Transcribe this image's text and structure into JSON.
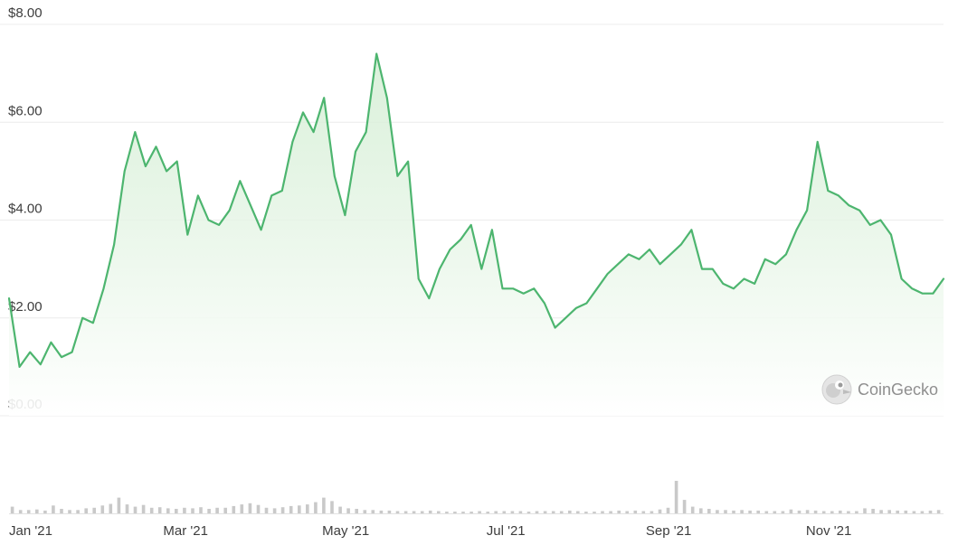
{
  "watermark": {
    "text": "CoinGecko"
  },
  "colors": {
    "line": "#4db56f",
    "fill_top": "#cfeccf",
    "fill_bottom": "#ffffff",
    "grid": "#ececec",
    "volume_bar": "#c9c9c9",
    "axis_text": "#3d3d3d"
  },
  "chart_data": [
    {
      "type": "area",
      "title": "",
      "xlabel": "",
      "ylabel": "",
      "grid": true,
      "legend": "none",
      "ylim": [
        0,
        8
      ],
      "y_ticks": [
        0,
        2,
        4,
        6,
        8
      ],
      "y_tick_labels": [
        "$0.00",
        "$2.00",
        "$4.00",
        "$6.00",
        "$8.00"
      ],
      "xlim": [
        "2021-01-01",
        "2021-12-23"
      ],
      "x_ticks": [
        "2021-01-01",
        "2021-03-01",
        "2021-05-01",
        "2021-07-01",
        "2021-09-01",
        "2021-11-01"
      ],
      "x_tick_labels": [
        "Jan '21",
        "Mar '21",
        "May '21",
        "Jul '21",
        "Sep '21",
        "Nov '21"
      ],
      "x": [
        "2021-01-01",
        "2021-01-05",
        "2021-01-09",
        "2021-01-13",
        "2021-01-17",
        "2021-01-21",
        "2021-01-25",
        "2021-01-29",
        "2021-02-02",
        "2021-02-06",
        "2021-02-10",
        "2021-02-14",
        "2021-02-18",
        "2021-02-22",
        "2021-02-26",
        "2021-03-02",
        "2021-03-06",
        "2021-03-10",
        "2021-03-14",
        "2021-03-18",
        "2021-03-22",
        "2021-03-26",
        "2021-03-30",
        "2021-04-03",
        "2021-04-07",
        "2021-04-11",
        "2021-04-15",
        "2021-04-19",
        "2021-04-23",
        "2021-04-27",
        "2021-05-01",
        "2021-05-05",
        "2021-05-09",
        "2021-05-13",
        "2021-05-17",
        "2021-05-21",
        "2021-05-25",
        "2021-05-29",
        "2021-06-02",
        "2021-06-06",
        "2021-06-10",
        "2021-06-14",
        "2021-06-18",
        "2021-06-22",
        "2021-06-26",
        "2021-06-30",
        "2021-07-04",
        "2021-07-08",
        "2021-07-12",
        "2021-07-16",
        "2021-07-20",
        "2021-07-24",
        "2021-07-28",
        "2021-08-01",
        "2021-08-05",
        "2021-08-09",
        "2021-08-13",
        "2021-08-17",
        "2021-08-21",
        "2021-08-25",
        "2021-08-29",
        "2021-09-02",
        "2021-09-06",
        "2021-09-10",
        "2021-09-14",
        "2021-09-18",
        "2021-09-22",
        "2021-09-26",
        "2021-09-30",
        "2021-10-04",
        "2021-10-08",
        "2021-10-12",
        "2021-10-16",
        "2021-10-20",
        "2021-10-24",
        "2021-10-28",
        "2021-11-01",
        "2021-11-05",
        "2021-11-09",
        "2021-11-13",
        "2021-11-17",
        "2021-11-21",
        "2021-11-25",
        "2021-11-29",
        "2021-12-03",
        "2021-12-07",
        "2021-12-11",
        "2021-12-15",
        "2021-12-19",
        "2021-12-23"
      ],
      "series": [
        {
          "values": [
            2.4,
            1.0,
            1.3,
            1.05,
            1.5,
            1.2,
            1.3,
            2.0,
            1.9,
            2.6,
            3.5,
            5.0,
            5.8,
            5.1,
            5.5,
            5.0,
            5.2,
            3.7,
            4.5,
            4.0,
            3.9,
            4.2,
            4.8,
            4.3,
            3.8,
            4.5,
            4.6,
            5.6,
            6.2,
            5.8,
            6.5,
            4.9,
            4.1,
            5.4,
            5.8,
            7.4,
            6.5,
            4.9,
            5.2,
            2.8,
            2.4,
            3.0,
            3.4,
            3.6,
            3.9,
            3.0,
            3.8,
            2.6,
            2.6,
            2.5,
            2.6,
            2.3,
            1.8,
            2.0,
            2.2,
            2.3,
            2.6,
            2.9,
            3.1,
            3.3,
            3.2,
            3.4,
            3.1,
            3.3,
            3.5,
            3.8,
            3.0,
            3.0,
            2.7,
            2.6,
            2.8,
            2.7,
            3.2,
            3.1,
            3.3,
            3.8,
            4.2,
            5.6,
            4.6,
            4.5,
            4.3,
            4.2,
            3.9,
            4.0,
            3.7,
            2.8,
            2.6,
            2.5,
            2.5,
            2.8
          ]
        }
      ]
    },
    {
      "type": "bar",
      "title": "",
      "xlabel": "",
      "ylabel": "",
      "legend": "none",
      "ylim": [
        0,
        100
      ],
      "values": [
        12,
        6,
        6,
        7,
        5,
        14,
        8,
        6,
        6,
        9,
        10,
        14,
        17,
        28,
        16,
        12,
        15,
        10,
        11,
        9,
        8,
        10,
        9,
        11,
        8,
        10,
        10,
        13,
        16,
        18,
        15,
        10,
        9,
        11,
        13,
        14,
        16,
        20,
        28,
        22,
        12,
        9,
        8,
        6,
        6,
        5,
        5,
        4,
        4,
        4,
        4,
        5,
        4,
        3,
        3,
        3,
        3,
        4,
        3,
        4,
        4,
        4,
        4,
        3,
        4,
        4,
        4,
        4,
        5,
        4,
        3,
        3,
        4,
        4,
        5,
        4,
        5,
        4,
        4,
        7,
        10,
        58,
        24,
        12,
        9,
        8,
        6,
        6,
        5,
        6,
        5,
        5,
        4,
        4,
        4,
        7,
        5,
        6,
        5,
        4,
        4,
        5,
        4,
        4,
        9,
        8,
        6,
        6,
        5,
        5,
        4,
        4,
        5,
        6
      ]
    }
  ]
}
